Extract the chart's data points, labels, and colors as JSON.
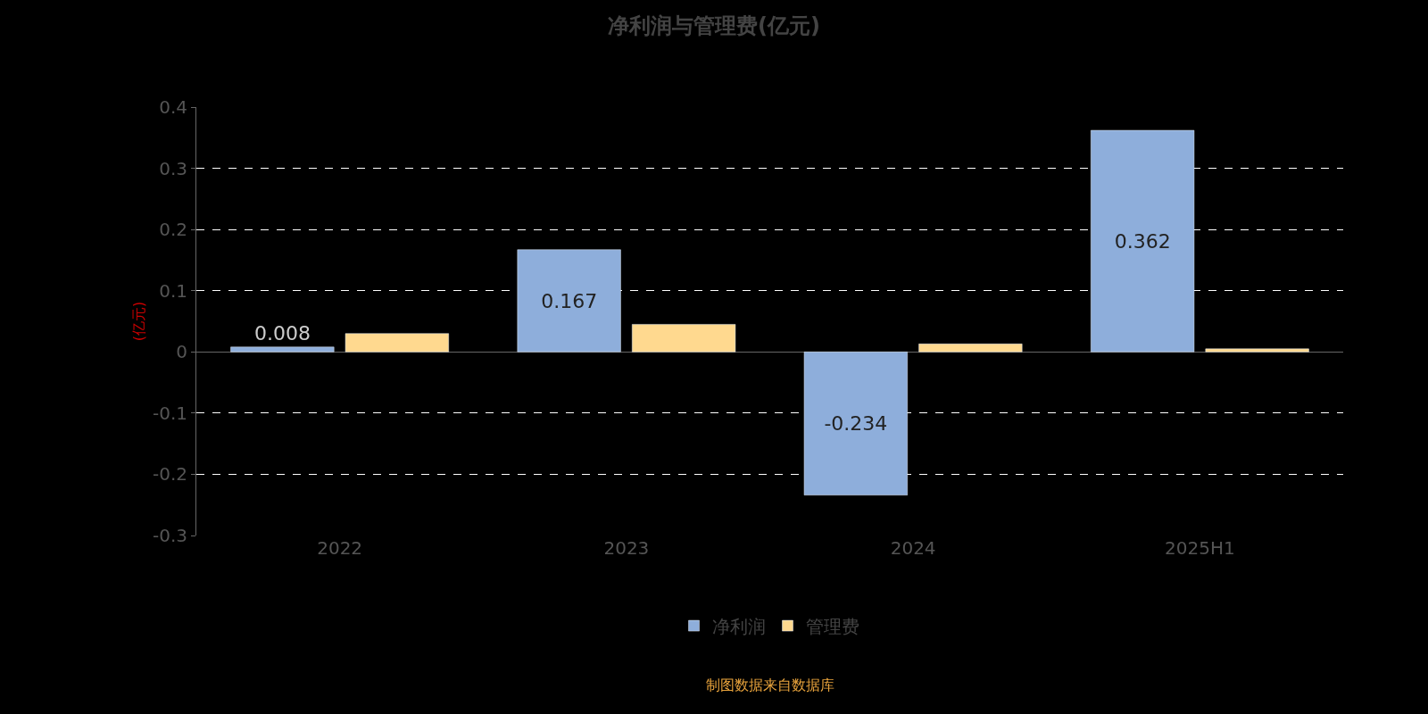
{
  "chart_data": {
    "type": "bar",
    "title": "净利润与管理费(亿元)",
    "ylabel": "(亿元)",
    "categories": [
      "2022",
      "2023",
      "2024",
      "2025H1"
    ],
    "series": [
      {
        "name": "净利润",
        "color": "#8eaedb",
        "values": [
          0.008,
          0.167,
          -0.234,
          0.362
        ],
        "value_labels": [
          "0.008",
          "0.167",
          "-0.234",
          "0.362"
        ]
      },
      {
        "name": "管理费",
        "color": "#ffd98f",
        "values": [
          0.03,
          0.045,
          0.013,
          0.005
        ]
      }
    ],
    "ylim": [
      -0.3,
      0.4
    ],
    "yticks": [
      -0.3,
      -0.2,
      -0.1,
      0,
      0.1,
      0.2,
      0.3,
      0.4
    ],
    "grid": "y",
    "legend": "bottom",
    "annotations": [
      "制图数据来自数据库"
    ]
  }
}
